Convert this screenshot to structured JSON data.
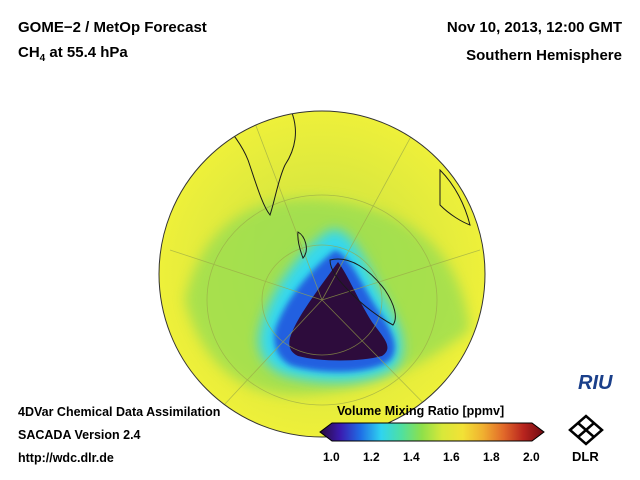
{
  "header": {
    "title": "GOME−2 / MetOp Forecast",
    "species_main": "CH",
    "species_sub": "4",
    "species_rest": " at 55.4 hPa",
    "datetime": "Nov 10, 2013, 12:00 GMT",
    "region": "Southern Hemisphere"
  },
  "footer": {
    "line1": "4DVar Chemical Data Assimilation",
    "line2": "SACADA Version 2.4",
    "line3": "http://wdc.dlr.de"
  },
  "colorbar": {
    "title": "Volume Mixing Ratio [ppmv]",
    "ticks": [
      "1.0",
      "1.2",
      "1.4",
      "1.6",
      "1.8",
      "2.0"
    ],
    "min": 1.0,
    "max": 2.0,
    "stops": [
      "#2a0a3a",
      "#3a1bb0",
      "#1f6fe6",
      "#2fd4f0",
      "#4fe0a0",
      "#8ee04a",
      "#d8e83a",
      "#f2e236",
      "#f0b030",
      "#e26a2a",
      "#b8241e",
      "#6e0a12"
    ]
  },
  "logos": {
    "riu": "RIU",
    "dlr": "DLR"
  },
  "map": {
    "background_color": "#e9ec3c",
    "ozone_hole_color": "#2d0c3c"
  }
}
